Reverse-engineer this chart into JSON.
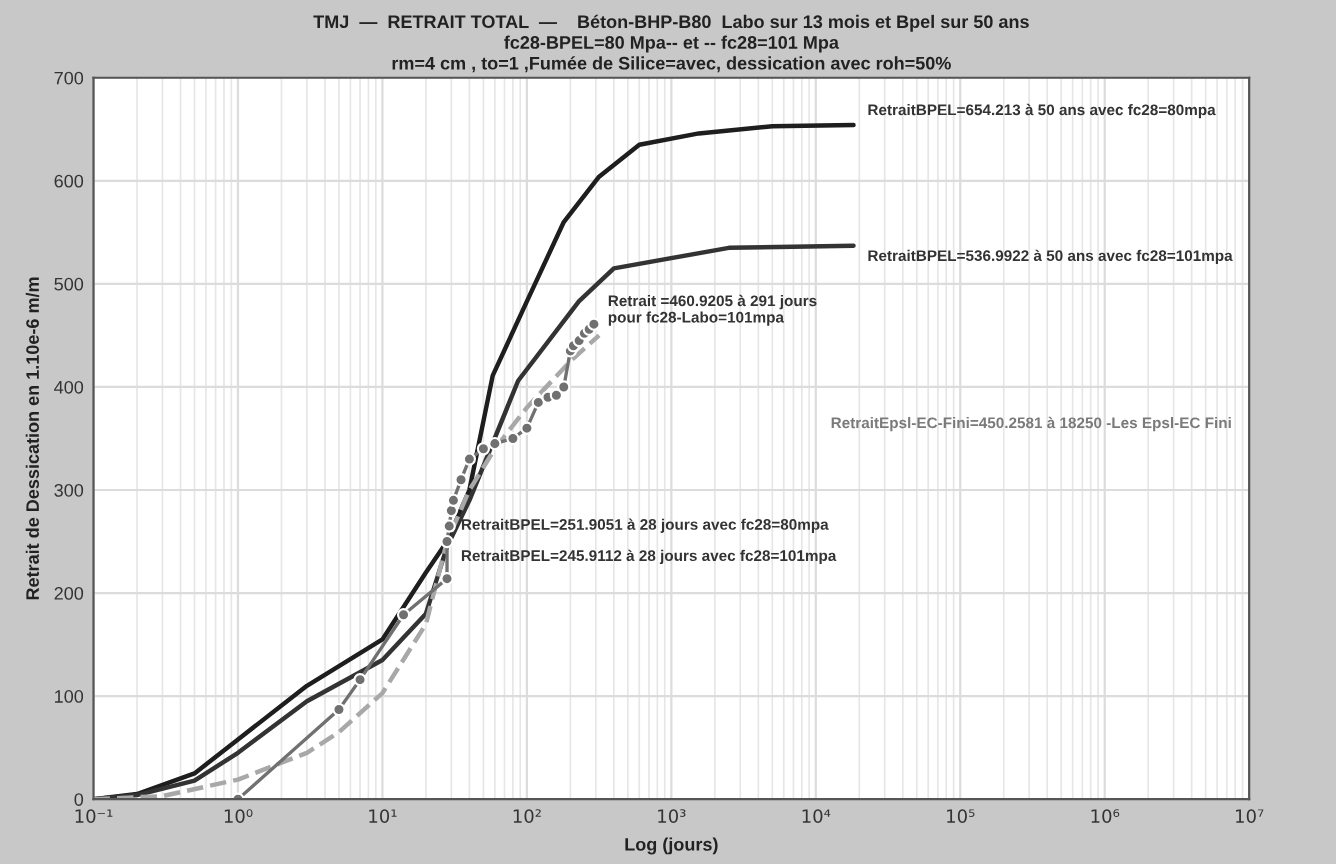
{
  "chart_data": {
    "type": "line",
    "title": "TMJ  —  RETRAIT TOTAL  —    Béton-BHP-B80  Labo sur 13 mois et Bpel sur 50 ans\nfc28-BPEL=80 Mpa-- et -- fc28=101 Mpa\nrm=4 cm , to=1 ,Fumée de Silice=avec, dessication avec roh=50%",
    "xlabel": "Log (jours)",
    "ylabel": "Retrait de Dessication en 1.10e-6 m/m",
    "log": "x",
    "xlim": [
      0.1,
      10000000
    ],
    "ylim": [
      0,
      700
    ],
    "xticks": [
      {
        "value": 0.1,
        "label": "10⁻¹"
      },
      {
        "value": 1,
        "label": "10⁰"
      },
      {
        "value": 10,
        "label": "10¹"
      },
      {
        "value": 100,
        "label": "10²"
      },
      {
        "value": 1000,
        "label": "10³"
      },
      {
        "value": 10000,
        "label": "10⁴"
      },
      {
        "value": 100000,
        "label": "10⁵"
      },
      {
        "value": 1000000,
        "label": "10⁶"
      },
      {
        "value": 10000000,
        "label": "10⁷"
      }
    ],
    "yticks": [
      0,
      100,
      200,
      300,
      400,
      500,
      600,
      700
    ],
    "grid": true,
    "legend": false,
    "series": [
      {
        "color": "#1e1e1e",
        "line_style": "solid",
        "marker": "none",
        "x": [
          0.1,
          0.2,
          0.5,
          1,
          3,
          10,
          20,
          28,
          40,
          58,
          100,
          180,
          316,
          600,
          1550,
          5000,
          18250
        ],
        "values": [
          0,
          5,
          25,
          58,
          110,
          155,
          220,
          250,
          300,
          411,
          483,
          560,
          604,
          635,
          646,
          653,
          654.213
        ]
      },
      {
        "color": "#333333",
        "line_style": "solid",
        "marker": "none",
        "x": [
          0.1,
          0.2,
          0.5,
          1,
          3,
          10,
          20,
          28,
          40,
          87,
          229,
          400,
          2500,
          18250
        ],
        "values": [
          0,
          4,
          18,
          45,
          95,
          135,
          180,
          245,
          290,
          406,
          483,
          515,
          535,
          536.9922
        ]
      },
      {
        "color": "#a8a8a8",
        "line_style": "dashed",
        "marker": "none",
        "x": [
          0.1,
          0.3,
          1,
          3,
          5,
          10,
          20,
          28,
          40,
          60,
          100,
          200,
          316
        ],
        "values": [
          0,
          3,
          19,
          45,
          65,
          103,
          170,
          250,
          300,
          340,
          380,
          425,
          450
        ]
      },
      {
        "color": "#707070",
        "line_style": "solid",
        "marker": "circle",
        "x": [
          1,
          5,
          7,
          14,
          28,
          28,
          29,
          30,
          31,
          35,
          40,
          50,
          60,
          80,
          100,
          120,
          140,
          160,
          180,
          200,
          210,
          230,
          250,
          270,
          291
        ],
        "values": [
          0,
          87,
          116,
          179,
          214,
          250,
          265,
          280,
          290,
          310,
          330,
          340,
          345,
          350,
          360,
          385,
          390,
          392,
          400,
          435,
          440,
          445,
          452,
          456,
          460.9205
        ]
      }
    ],
    "annotations": [
      {
        "text": "RetraitBPEL=654.213 à 50 ans avec fc28=80mpa",
        "x": 18250,
        "y": 654.213
      },
      {
        "text": "RetraitBPEL=536.9922 à 50 ans avec fc28=101mpa",
        "x": 18250,
        "y": 536.9922
      },
      {
        "text": "Retrait =460.9205 à 291 jours\npour fc28-Labo=101mpa",
        "x": 291,
        "y": 460.9205
      },
      "RetraitEpsl-EC-Fini=450.2581 à 18250 -Les Epsl-EC Fini",
      {
        "text": "RetraitBPEL=251.9051 à 28 jours avec fc28=80mpa",
        "x": 28,
        "y": 251.9051
      },
      {
        "text": "RetraitBPEL=245.9112 à 28 jours avec fc28=101mpa",
        "x": 28,
        "y": 245.9112
      }
    ]
  }
}
